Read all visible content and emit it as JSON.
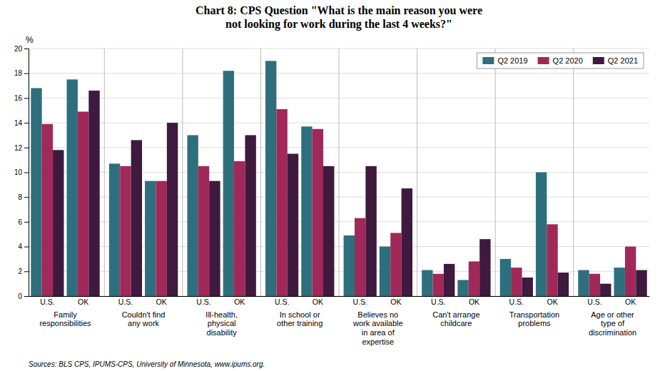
{
  "chart_data": {
    "type": "bar",
    "title": "Chart 8: CPS Question \"What is the main reason you were\nnot looking for work during the last 4 weeks?\"",
    "categories": [
      "Family\nresponsibilities",
      "Couldn't find\nany work",
      "Ill-health,\nphysical\ndisability",
      "In school or\nother training",
      "Believes no\nwork available\nin area of\nexpertise",
      "Can't arrange\nchildcare",
      "Transportation\nproblems",
      "Age or other\ntype of\ndiscrimination"
    ],
    "subcategories": [
      "U.S.",
      "OK"
    ],
    "series": [
      {
        "name": "Q2 2019",
        "color": "#2E6F7E",
        "values": [
          [
            16.8,
            17.5
          ],
          [
            10.7,
            9.3
          ],
          [
            13.0,
            18.2
          ],
          [
            19.0,
            13.7
          ],
          [
            4.9,
            4.0
          ],
          [
            2.1,
            1.3
          ],
          [
            3.0,
            10.0
          ],
          [
            2.1,
            2.3
          ]
        ]
      },
      {
        "name": "Q2 2020",
        "color": "#A0295A",
        "values": [
          [
            13.9,
            14.9
          ],
          [
            10.5,
            9.3
          ],
          [
            10.5,
            10.9
          ],
          [
            15.1,
            13.5
          ],
          [
            6.3,
            5.1
          ],
          [
            1.8,
            2.8
          ],
          [
            2.3,
            5.8
          ],
          [
            1.8,
            4.0
          ]
        ]
      },
      {
        "name": "Q2 2021",
        "color": "#3D1A3E",
        "values": [
          [
            11.8,
            16.6
          ],
          [
            12.6,
            14.0
          ],
          [
            9.3,
            13.0
          ],
          [
            11.5,
            10.5
          ],
          [
            10.5,
            8.7
          ],
          [
            2.6,
            4.6
          ],
          [
            1.5,
            1.9
          ],
          [
            1.0,
            2.1
          ]
        ]
      }
    ],
    "ylabel": "%",
    "ylim": [
      0,
      20
    ],
    "yticks": [
      0,
      2,
      4,
      6,
      8,
      10,
      12,
      14,
      16,
      18,
      20
    ],
    "grid": true,
    "legend": "upper right",
    "source": "Sources: BLS CPS, IPUMS-CPS, University of Minnesota, www.ipums.org."
  }
}
